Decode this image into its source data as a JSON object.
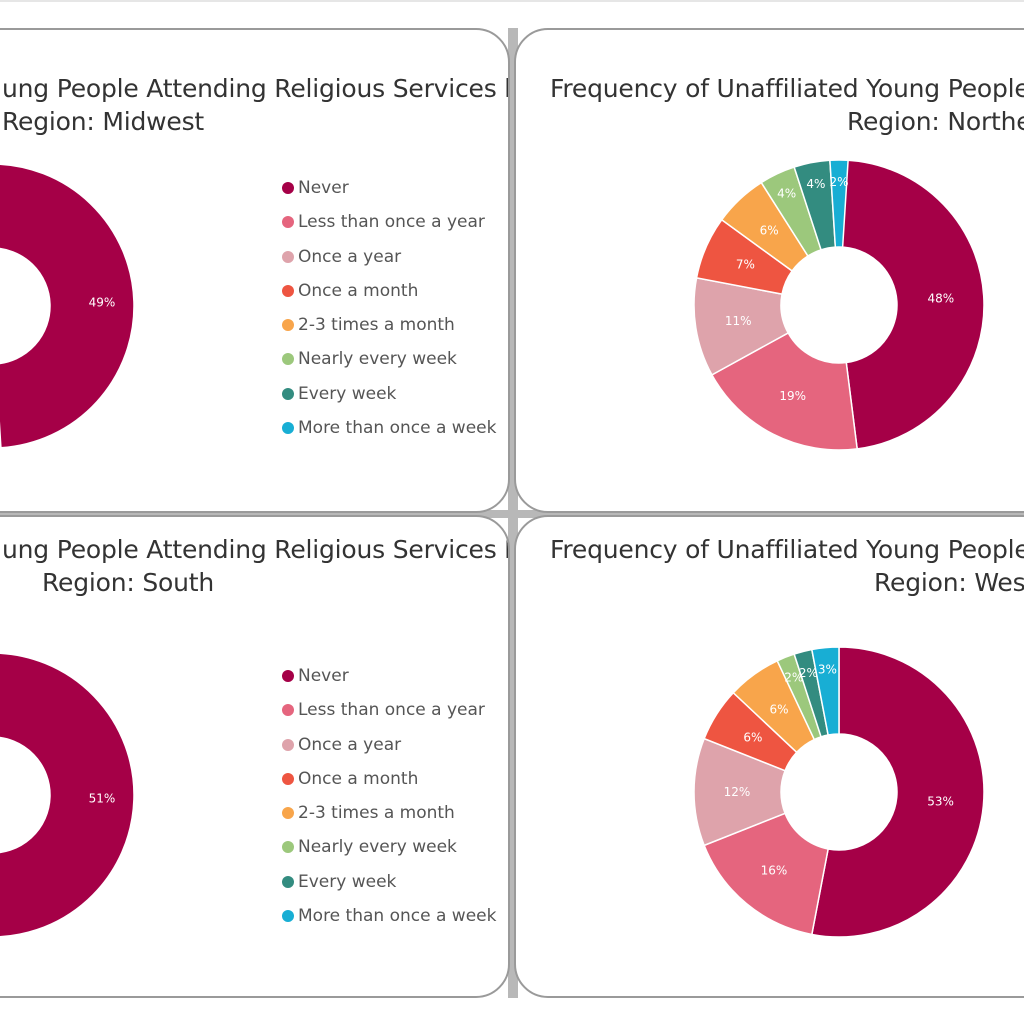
{
  "legend_labels": [
    "Never",
    "Less than once a year",
    "Once a year",
    "Once a month",
    "2-3 times a month",
    "Nearly every week",
    "Every week",
    "More than once a week"
  ],
  "colors": [
    "#a50047",
    "#e5657e",
    "#dea3ab",
    "#ee5541",
    "#f8a54b",
    "#9cc87c",
    "#338c80",
    "#18aed4"
  ],
  "chart_data": [
    {
      "type": "pie",
      "title_line1": "ung People Attending Religious Services by",
      "title_line2": "Region: Midwest",
      "categories": [
        "Never"
      ],
      "values": [
        49
      ],
      "labels": [
        "49%"
      ]
    },
    {
      "type": "pie",
      "title_line1": "Frequency of Unaffiliated Young People Att",
      "title_line2": "Region: Northea",
      "categories": [
        "Never",
        "Less than once a year",
        "Once a year",
        "Once a month",
        "2-3 times a month",
        "Nearly every week",
        "Every week",
        "More than once a week"
      ],
      "values": [
        48,
        19,
        11,
        7,
        6,
        4,
        4,
        2
      ],
      "labels": [
        "48%",
        "19%",
        "11%",
        "7%",
        "6%",
        "4%",
        "4%",
        "2%"
      ]
    },
    {
      "type": "pie",
      "title_line1": "ung People Attending Religious Services by",
      "title_line2": "Region: South",
      "categories": [
        "Never"
      ],
      "values": [
        51
      ],
      "labels": [
        "51%"
      ]
    },
    {
      "type": "pie",
      "title_line1": "Frequency of Unaffiliated Young People Att",
      "title_line2": "Region: West",
      "categories": [
        "Never",
        "Less than once a year",
        "Once a year",
        "Once a month",
        "2-3 times a month",
        "Nearly every week",
        "Every week",
        "More than once a week"
      ],
      "values": [
        53,
        16,
        12,
        6,
        6,
        2,
        2,
        3
      ],
      "labels": [
        "53%",
        "16%",
        "12%",
        "6%",
        "6%",
        "2%",
        "2%",
        "3%"
      ]
    }
  ]
}
